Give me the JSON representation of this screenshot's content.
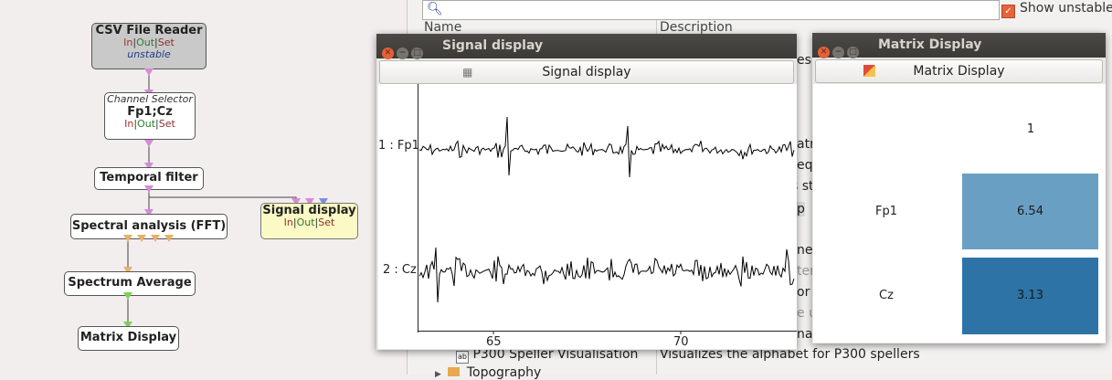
{
  "designer": {
    "boxes": {
      "csv": {
        "title": "CSV File Reader",
        "io_in": "In",
        "io_out": "Out",
        "io_set": "Set",
        "status": "unstable"
      },
      "chansel": {
        "subtitle": "Channel Selector",
        "title": "Fp1;Cz",
        "io_in": "In",
        "io_out": "Out",
        "io_set": "Set"
      },
      "temporal": {
        "title": "Temporal filter"
      },
      "fft": {
        "title": "Spectral analysis (FFT)"
      },
      "sigdisp": {
        "title": "Signal display",
        "io_in": "In",
        "io_out": "Out",
        "io_set": "Set"
      },
      "specavg": {
        "title": "Spectrum Average"
      },
      "matdisp": {
        "title": "Matrix Display"
      }
    },
    "io_separator": "|"
  },
  "background_panel": {
    "search_placeholder": "",
    "show_unstable": "Show unstable",
    "columns": [
      "Name",
      "Description"
    ],
    "fragments": {
      "es": "es",
      "atri": "atri",
      "equ": "equ",
      "st": "s st",
      "p": "p",
      "ner": "ner",
      "ter": "ter",
      "or_t": "or t",
      "e_us": "e us",
      "nag": "nag",
      "p300_name": "P300 Speller Visualisation",
      "p300_desc": "Visualizes the alphabet for P300 spellers",
      "topo": "Topography"
    }
  },
  "signal_window": {
    "title": "Signal display",
    "toolbar_label": "Signal display",
    "channels": [
      "1 : Fp1",
      "2 : Cz"
    ],
    "x_ticks": [
      "65",
      "70"
    ],
    "chart_data": {
      "type": "line",
      "series": [
        {
          "name": "1 : Fp1"
        },
        {
          "name": "2 : Cz"
        }
      ],
      "x_ticks": [
        65,
        70
      ],
      "x_range": [
        63,
        74.4
      ],
      "grid": false
    }
  },
  "matrix_window": {
    "title": "Matrix Display",
    "toolbar_label": "Matrix Display",
    "column_header": "1",
    "rows": [
      {
        "label": "Fp1",
        "value": "6.54",
        "color": "#6a9fc4"
      },
      {
        "label": "Cz",
        "value": "3.13",
        "color": "#2d73a6"
      }
    ]
  }
}
